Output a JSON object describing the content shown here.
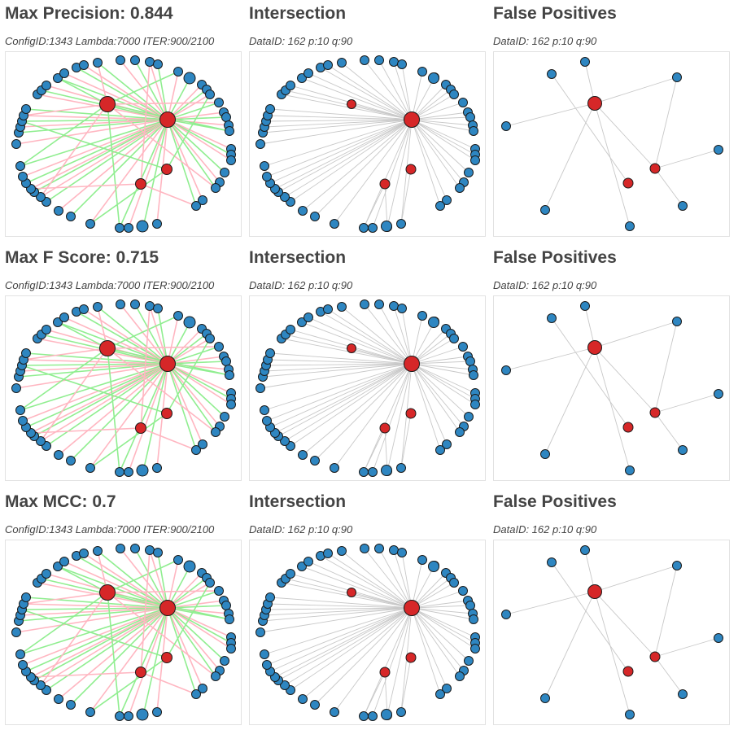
{
  "rows": [
    {
      "main_title": "Max Precision: 0.844",
      "main_subtitle": "ConfigID:1343 Lambda:7000 ITER:900/2100",
      "intersection_title": "Intersection",
      "intersection_subtitle": "DataID: 162 p:10 q:90",
      "fp_title": "False Positives",
      "fp_subtitle": "DataID: 162 p:10 q:90"
    },
    {
      "main_title": "Max F Score: 0.715",
      "main_subtitle": "ConfigID:1343 Lambda:7000 ITER:900/2100",
      "intersection_title": "Intersection",
      "intersection_subtitle": "DataID: 162 p:10 q:90",
      "fp_title": "False Positives",
      "fp_subtitle": "DataID: 162 p:10 q:90"
    },
    {
      "main_title": "Max MCC: 0.7",
      "main_subtitle": "ConfigID:1343 Lambda:7000 ITER:900/2100",
      "intersection_title": "Intersection",
      "intersection_subtitle": "DataID: 162 p:10 q:90",
      "fp_title": "False Positives",
      "fp_subtitle": "DataID: 162 p:10 q:90"
    }
  ],
  "colors": {
    "blue_node": "#2e86c1",
    "red_node": "#d62728",
    "green_edge": "#90ee90",
    "pink_edge": "#ffb6c1",
    "gray_edge": "#c8c8c8",
    "node_stroke": "#1a1a1a"
  }
}
